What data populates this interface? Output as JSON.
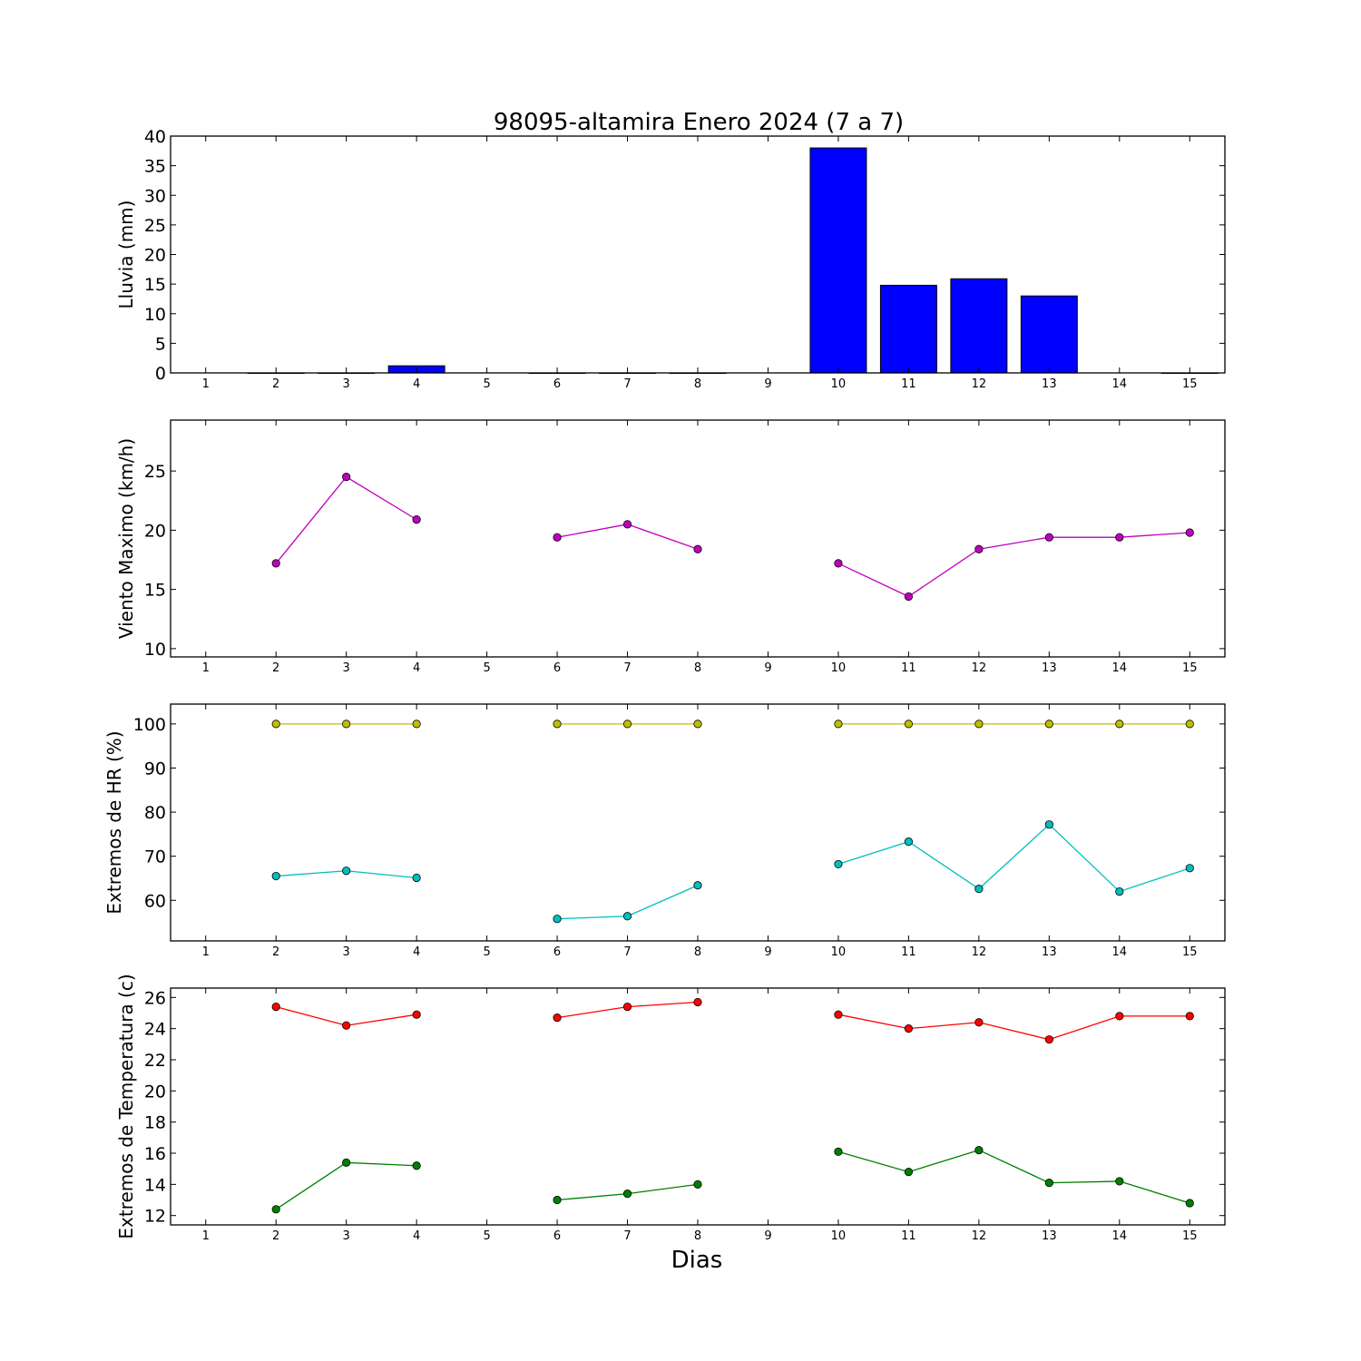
{
  "chart_data": {
    "title": "98095-altamira Enero 2024  (7 a 7)",
    "xlabel": "Dias",
    "x_ticks": [
      1,
      2,
      3,
      4,
      5,
      6,
      7,
      8,
      9,
      10,
      11,
      12,
      13,
      14,
      15
    ],
    "panels": [
      {
        "type": "bar",
        "ylabel": "Lluvia (mm)",
        "ylim": [
          0,
          40
        ],
        "yticks": [
          0,
          5,
          10,
          15,
          20,
          25,
          30,
          35,
          40
        ],
        "series": [
          {
            "color": "#0000ff",
            "x": [
              2,
              3,
              4,
              6,
              7,
              8,
              10,
              11,
              12,
              13,
              15
            ],
            "values": [
              0,
              0,
              1.2,
              0,
              0,
              0,
              38,
              14.8,
              15.9,
              13,
              0
            ]
          }
        ]
      },
      {
        "type": "line",
        "ylabel": "Viento Maximo (km/h)",
        "ylim": [
          9.3,
          29.3
        ],
        "yticks": [
          10,
          15,
          20,
          25
        ],
        "series": [
          {
            "color": "#bf00bf",
            "x": [
              1,
              2,
              3,
              4,
              5,
              6,
              7,
              8,
              9,
              10,
              11,
              12,
              13,
              14,
              15
            ],
            "values": [
              null,
              17.2,
              24.5,
              20.9,
              null,
              19.4,
              20.5,
              18.4,
              null,
              17.2,
              14.4,
              18.4,
              19.4,
              19.4,
              19.8
            ]
          }
        ]
      },
      {
        "type": "line",
        "ylabel": "Extremos de HR (%)",
        "ylim": [
          50.8,
          104.5
        ],
        "yticks": [
          60,
          70,
          80,
          90,
          100
        ],
        "series": [
          {
            "color": "#bfbf00",
            "x": [
              1,
              2,
              3,
              4,
              5,
              6,
              7,
              8,
              9,
              10,
              11,
              12,
              13,
              14,
              15
            ],
            "values": [
              null,
              100,
              100,
              100,
              null,
              100,
              100,
              100,
              null,
              100,
              100,
              100,
              100,
              100,
              100
            ]
          },
          {
            "color": "#00bfbf",
            "x": [
              1,
              2,
              3,
              4,
              5,
              6,
              7,
              8,
              9,
              10,
              11,
              12,
              13,
              14,
              15
            ],
            "values": [
              null,
              65.5,
              66.7,
              65.1,
              null,
              55.8,
              56.4,
              63.4,
              null,
              68.2,
              73.3,
              62.6,
              77.2,
              62.0,
              67.3
            ]
          }
        ]
      },
      {
        "type": "line",
        "ylabel": "Extremos de Temperatura (c)",
        "ylim": [
          11.4,
          26.6
        ],
        "yticks": [
          12,
          14,
          16,
          18,
          20,
          22,
          24,
          26
        ],
        "series": [
          {
            "color": "#ff0000",
            "x": [
              1,
              2,
              3,
              4,
              5,
              6,
              7,
              8,
              9,
              10,
              11,
              12,
              13,
              14,
              15
            ],
            "values": [
              null,
              25.4,
              24.2,
              24.9,
              null,
              24.7,
              25.4,
              25.7,
              null,
              24.9,
              24.0,
              24.4,
              23.3,
              24.8,
              24.8
            ]
          },
          {
            "color": "#007f00",
            "x": [
              1,
              2,
              3,
              4,
              5,
              6,
              7,
              8,
              9,
              10,
              11,
              12,
              13,
              14,
              15
            ],
            "values": [
              null,
              12.4,
              15.4,
              15.2,
              null,
              13.0,
              13.4,
              14.0,
              null,
              16.1,
              14.8,
              16.2,
              14.1,
              14.2,
              12.8
            ]
          }
        ]
      }
    ]
  }
}
